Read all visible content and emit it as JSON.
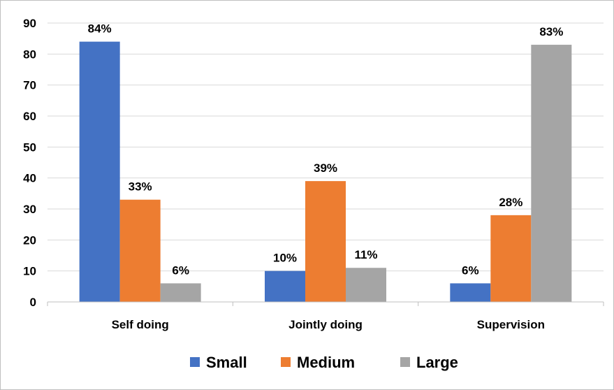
{
  "chart_data": {
    "type": "bar",
    "categories": [
      "Self doing",
      "Jointly doing",
      "Supervision"
    ],
    "series": [
      {
        "name": "Small",
        "values": [
          84,
          10,
          6
        ],
        "labels": [
          "84%",
          "10%",
          "6%"
        ],
        "color": "#4472c4"
      },
      {
        "name": "Medium",
        "values": [
          33,
          39,
          28
        ],
        "labels": [
          "33%",
          "39%",
          "28%"
        ],
        "color": "#ed7d31"
      },
      {
        "name": "Large",
        "values": [
          6,
          11,
          83
        ],
        "labels": [
          "6%",
          "11%",
          "83%"
        ],
        "color": "#a5a5a5"
      }
    ],
    "ylim": [
      0,
      90
    ],
    "yticks": [
      0,
      10,
      20,
      30,
      40,
      50,
      60,
      70,
      80,
      90
    ],
    "grid": true,
    "legend_position": "bottom"
  }
}
